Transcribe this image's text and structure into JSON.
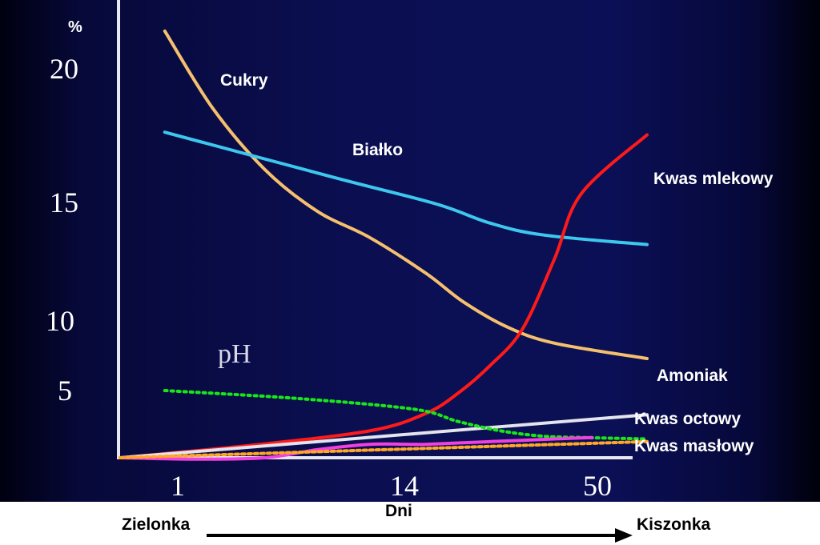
{
  "chart_data": {
    "type": "line",
    "y_unit": "%",
    "y_ticks": [
      "20",
      "15",
      "10",
      "5"
    ],
    "x_ticks": [
      "1",
      "14",
      "50"
    ],
    "xlabel": "Dni",
    "x_start_label": "Zielonka",
    "x_end_label": "Kiszonka",
    "series": [
      {
        "name": "Cukry",
        "color": "#f5c06e",
        "points": [
          [
            0.1,
            21.4
          ],
          [
            3,
            18.5
          ],
          [
            6,
            16.2
          ],
          [
            9,
            14.6
          ],
          [
            12,
            13.5
          ],
          [
            18,
            12
          ],
          [
            25,
            10.8
          ],
          [
            33,
            9.6
          ],
          [
            42,
            8.4
          ],
          [
            52,
            7.3
          ]
        ]
      },
      {
        "name": "Białko",
        "color": "#3ec7ee",
        "points": [
          [
            0.1,
            17.6
          ],
          [
            10,
            15.9
          ],
          [
            20,
            14.9
          ],
          [
            30,
            14.1
          ],
          [
            40,
            13.6
          ],
          [
            52,
            13.2
          ]
        ]
      },
      {
        "name": "Kwas mlekowy",
        "color": "#ff1a1a",
        "points": [
          [
            -3,
            0
          ],
          [
            5,
            0.9
          ],
          [
            12,
            2.0
          ],
          [
            18,
            3.3
          ],
          [
            24,
            4.8
          ],
          [
            30,
            6.8
          ],
          [
            36,
            9.4
          ],
          [
            42,
            12.6
          ],
          [
            47,
            15.3
          ],
          [
            52,
            17.5
          ]
        ]
      },
      {
        "name": "Amoniak",
        "color": "#e4e4ee",
        "points": [
          [
            -3,
            0
          ],
          [
            52,
            3.2
          ]
        ]
      },
      {
        "name": "pH",
        "color": "#19e619",
        "points": [
          [
            0.1,
            5.0
          ],
          [
            8,
            4.4
          ],
          [
            16,
            3.6
          ],
          [
            24,
            2.7
          ],
          [
            32,
            2.0
          ],
          [
            40,
            1.6
          ],
          [
            48,
            1.5
          ],
          [
            52,
            1.4
          ]
        ]
      },
      {
        "name": "Kwas octowy",
        "color": "#f040e0",
        "points": [
          [
            -3,
            0
          ],
          [
            2,
            -0.1
          ],
          [
            6,
            0
          ],
          [
            9,
            0.6
          ],
          [
            12,
            1.0
          ],
          [
            15,
            1.0
          ],
          [
            18,
            1.0
          ],
          [
            24,
            1.1
          ],
          [
            30,
            1.2
          ],
          [
            36,
            1.3
          ],
          [
            42,
            1.4
          ],
          [
            49,
            1.5
          ]
        ]
      },
      {
        "name": "Kwas masłowy",
        "color": "#ffa726",
        "points": [
          [
            -3,
            0
          ],
          [
            52,
            1.2
          ]
        ]
      }
    ]
  },
  "axis_unit_label": "%",
  "ph_label": "pH",
  "labels": {
    "cukry": "Cukry",
    "bialko": "Białko",
    "kwas_mlekowy": "Kwas mlekowy",
    "amoniak": "Amoniak",
    "kwas_octowy": "Kwas octowy",
    "kwas_maslowy": "Kwas masłowy"
  }
}
